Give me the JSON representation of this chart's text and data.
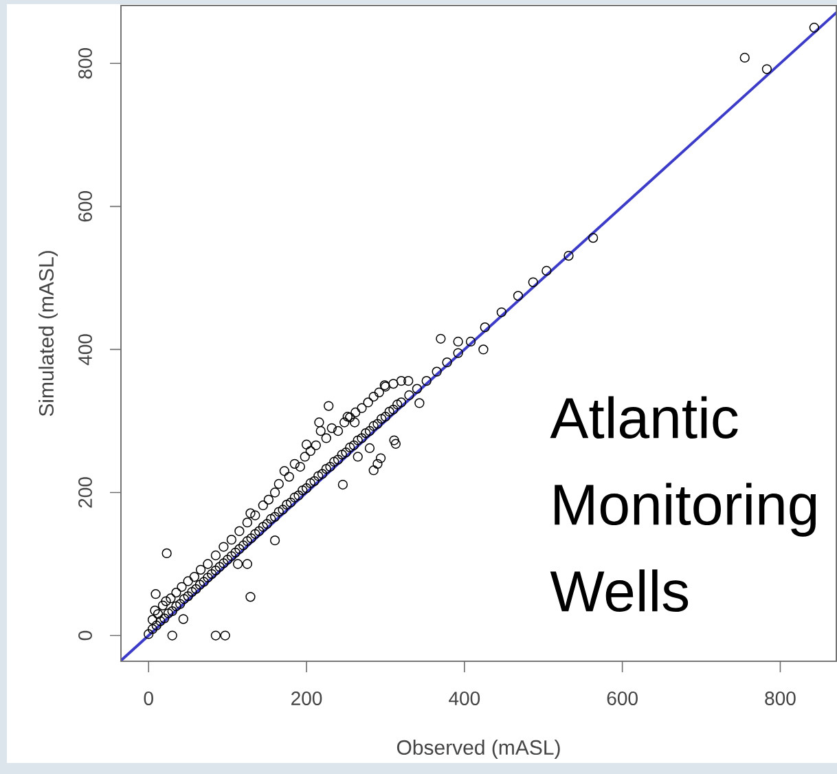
{
  "chart_data": {
    "type": "scatter",
    "xlabel": "Observed (mASL)",
    "ylabel": "Simulated (mASL)",
    "annotations": [
      "Atlantic Monitoring Wells"
    ],
    "xlim": [
      -35,
      871
    ],
    "ylim": [
      -36,
      881
    ],
    "xticks": [
      0,
      200,
      400,
      600,
      800
    ],
    "yticks": [
      0,
      200,
      400,
      600,
      800
    ],
    "marker": "circle",
    "series": [
      {
        "color": "#000000",
        "x": [
          0,
          5,
          10,
          15,
          20,
          25,
          30,
          35,
          40,
          45,
          50,
          55,
          60,
          65,
          70,
          75,
          80,
          85,
          90,
          95,
          100,
          105,
          110,
          115,
          120,
          125,
          130,
          135,
          140,
          145,
          150,
          155,
          160,
          165,
          170,
          175,
          180,
          185,
          190,
          195,
          200,
          205,
          210,
          215,
          220,
          225,
          230,
          235,
          240,
          245,
          250,
          255,
          260,
          265,
          270,
          275,
          280,
          285,
          290,
          295,
          300,
          305,
          310,
          315,
          320,
          330,
          340,
          352,
          365,
          378,
          392,
          408,
          5,
          8,
          12,
          18,
          22,
          28,
          35,
          42,
          50,
          58,
          66,
          75,
          85,
          95,
          105,
          115,
          125,
          135,
          145,
          152,
          160,
          165,
          172,
          178,
          185,
          192,
          198,
          205,
          212,
          218,
          225,
          232,
          240,
          248,
          255,
          262,
          270,
          278,
          285,
          292,
          300,
          310,
          320,
          44,
          113,
          125,
          160,
          246,
          265,
          280,
          285,
          290,
          294,
          311,
          313,
          9,
          23,
          30,
          85,
          97,
          129,
          129,
          200,
          216,
          228,
          252,
          261,
          299,
          329,
          343,
          370,
          392,
          424,
          426,
          447,
          468,
          487,
          504,
          532,
          563,
          755,
          783,
          843
        ],
        "values": [
          2,
          9,
          14,
          20,
          24,
          31,
          34,
          41,
          44,
          51,
          55,
          61,
          65,
          71,
          75,
          81,
          86,
          91,
          96,
          101,
          106,
          111,
          116,
          121,
          126,
          132,
          136,
          142,
          146,
          152,
          156,
          163,
          166,
          173,
          176,
          183,
          186,
          193,
          196,
          203,
          206,
          213,
          216,
          223,
          226,
          233,
          236,
          243,
          246,
          253,
          256,
          263,
          266,
          273,
          276,
          283,
          286,
          293,
          296,
          303,
          306,
          313,
          316,
          323,
          326,
          336,
          345,
          356,
          369,
          382,
          395,
          411,
          22,
          35,
          30,
          42,
          48,
          52,
          60,
          68,
          76,
          82,
          92,
          100,
          112,
          124,
          134,
          146,
          158,
          168,
          182,
          190,
          200,
          212,
          230,
          222,
          240,
          236,
          250,
          258,
          266,
          286,
          276,
          290,
          286,
          298,
          305,
          312,
          318,
          326,
          334,
          340,
          348,
          352,
          356,
          23,
          100,
          100,
          133,
          211,
          250,
          262,
          231,
          240,
          248,
          273,
          268,
          58,
          115,
          0,
          0,
          0,
          54,
          171,
          267,
          298,
          321,
          306,
          298,
          350,
          356,
          325,
          415,
          411,
          400,
          431,
          452,
          475,
          494,
          510,
          531,
          556,
          808,
          792,
          850
        ]
      },
      {
        "type": "line",
        "color": "#3c3cc8",
        "marker": "none",
        "line_style": "solid",
        "x": [
          -35,
          871
        ],
        "values": [
          -35,
          871
        ]
      }
    ]
  }
}
